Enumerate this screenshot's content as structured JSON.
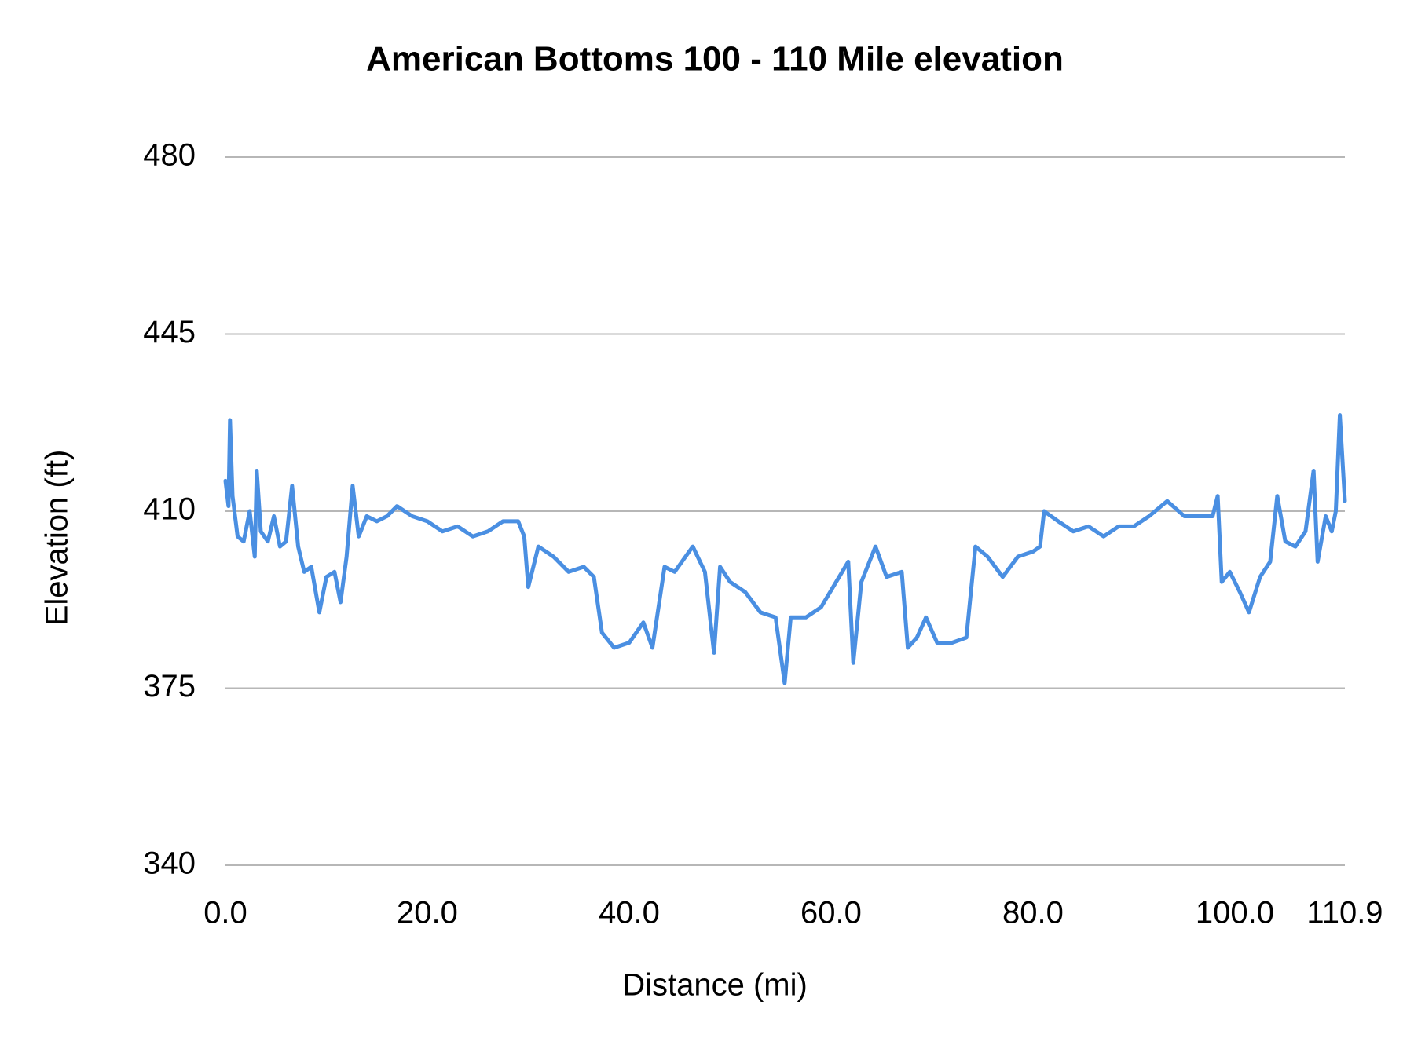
{
  "chart_data": {
    "type": "line",
    "title": "American Bottoms 100 - 110 Mile elevation",
    "x_label": "Distance (mi)",
    "y_label": "Elevation (ft)",
    "xlim": [
      0,
      110.9
    ],
    "xticks": [
      {
        "value": 0,
        "label": "0.0"
      },
      {
        "value": 20,
        "label": "20.0"
      },
      {
        "value": 40,
        "label": "40.0"
      },
      {
        "value": 60,
        "label": "60.0"
      },
      {
        "value": 80,
        "label": "80.0"
      },
      {
        "value": 100,
        "label": "100.0"
      },
      {
        "value": 110.9,
        "label": "110.9"
      }
    ],
    "ylim": [
      340,
      480
    ],
    "yticks": [
      340,
      375,
      410,
      445,
      480
    ],
    "grid": true,
    "x": [
      0,
      0.3,
      0.45,
      0.7,
      1.2,
      1.8,
      2.4,
      2.9,
      3.1,
      3.5,
      4.2,
      4.8,
      5.4,
      6.0,
      6.6,
      7.2,
      7.8,
      8.5,
      9.3,
      10.0,
      10.8,
      11.4,
      12.0,
      12.6,
      13.2,
      14.0,
      15.0,
      16.0,
      17.0,
      18.5,
      20.0,
      21.5,
      23.0,
      24.5,
      26.0,
      27.5,
      29.0,
      29.6,
      30.0,
      31.0,
      32.5,
      34.0,
      35.5,
      36.5,
      37.3,
      38.5,
      40.0,
      41.4,
      42.3,
      43.5,
      44.5,
      46.3,
      47.5,
      48.4,
      49.0,
      50.0,
      51.5,
      53.0,
      54.5,
      55.4,
      56.0,
      57.5,
      59.0,
      60.5,
      61.7,
      62.2,
      63.0,
      64.4,
      65.5,
      67.0,
      67.6,
      68.5,
      69.4,
      70.5,
      72.0,
      73.4,
      74.3,
      75.5,
      77.0,
      78.5,
      80.0,
      80.7,
      81.1,
      82.5,
      84.0,
      85.5,
      87.0,
      88.5,
      90.0,
      91.5,
      93.3,
      95.0,
      96.5,
      97.8,
      98.3,
      98.7,
      99.5,
      100.5,
      101.4,
      102.5,
      103.5,
      104.2,
      105.0,
      106.0,
      107.0,
      107.8,
      108.2,
      109.0,
      109.6,
      110.0,
      110.4,
      110.9
    ],
    "series": [
      {
        "color": "#4a8fe2",
        "values": [
          416,
          411,
          428,
          413,
          405,
          404,
          410,
          401,
          418,
          406,
          404,
          409,
          403,
          404,
          415,
          403,
          398,
          399,
          390,
          397,
          398,
          392,
          401,
          415,
          405,
          409,
          408,
          409,
          411,
          409,
          408,
          406,
          407,
          405,
          406,
          408,
          408,
          405,
          395,
          403,
          401,
          398,
          399,
          397,
          386,
          383,
          384,
          388,
          383,
          399,
          398,
          403,
          398,
          382,
          399,
          396,
          394,
          390,
          389,
          376,
          389,
          389,
          391,
          396,
          400,
          380,
          396,
          403,
          397,
          398,
          383,
          385,
          389,
          384,
          384,
          385,
          403,
          401,
          397,
          401,
          402,
          403,
          410,
          408,
          406,
          407,
          405,
          407,
          407,
          409,
          412,
          409,
          409,
          409,
          413,
          396,
          398,
          394,
          390,
          397,
          400,
          413,
          404,
          403,
          406,
          418,
          400,
          409,
          406,
          410,
          429,
          412
        ]
      }
    ]
  }
}
